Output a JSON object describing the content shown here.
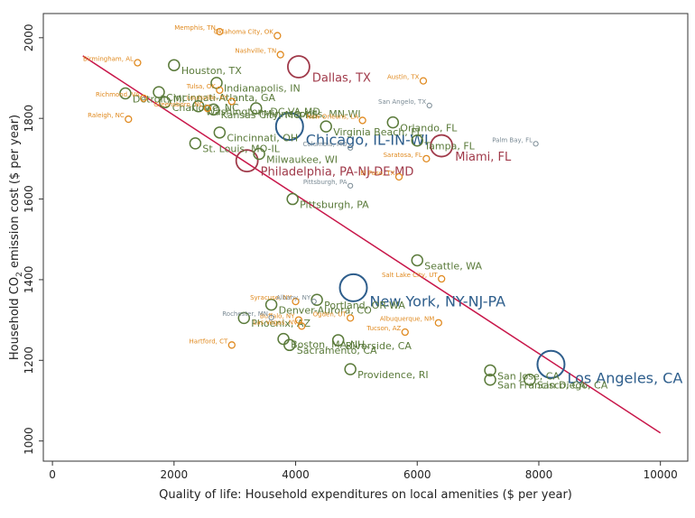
{
  "chart_data": {
    "type": "scatter",
    "xlabel": "Quality of life: Household expenditures on local amenities ($ per year)",
    "ylabel_main": "Household CO",
    "ylabel_sub": "2",
    "ylabel_rest": " emission cost ($ per year)",
    "xlim": [
      -150,
      10450
    ],
    "ylim": [
      950,
      2060
    ],
    "x_ticks": [
      0,
      2000,
      4000,
      6000,
      8000,
      10000
    ],
    "y_ticks": [
      1000,
      1200,
      1400,
      1600,
      1800,
      2000
    ],
    "fit_line": {
      "x": [
        500,
        10000
      ],
      "y": [
        1955,
        1020
      ]
    },
    "colors": {
      "large": "#2e5e8c",
      "medium": "#a03a4a",
      "small": "#5a7a3a",
      "tiny": "#e08a20",
      "tiny_gray": "#7a8a94",
      "line": "#c8174a"
    },
    "points": [
      {
        "label": "Los Angeles, CA",
        "x": 8200,
        "y": 1190,
        "size": "large"
      },
      {
        "label": "New York, NY-NJ-PA",
        "x": 4950,
        "y": 1380,
        "size": "large"
      },
      {
        "label": "Chicago, IL-IN-WI",
        "x": 3900,
        "y": 1780,
        "size": "large"
      },
      {
        "label": "Dallas, TX",
        "x": 4050,
        "y": 1928,
        "size": "medium"
      },
      {
        "label": "Miami, FL",
        "x": 6400,
        "y": 1732,
        "size": "medium"
      },
      {
        "label": "Philadelphia, PA-NJ-DE-MD",
        "x": 3200,
        "y": 1695,
        "size": "medium"
      },
      {
        "label": "Houston, TX",
        "x": 2000,
        "y": 1932,
        "size": "small"
      },
      {
        "label": "Indianapolis, IN",
        "x": 2700,
        "y": 1888,
        "size": "small"
      },
      {
        "label": "Cincinnati, OH",
        "x": 2750,
        "y": 1765,
        "size": "small"
      },
      {
        "label": "St. Louis, MO-IL",
        "x": 2350,
        "y": 1738,
        "size": "small"
      },
      {
        "label": "Milwaukee, WI",
        "x": 3400,
        "y": 1712,
        "size": "small"
      },
      {
        "label": "Pittsburgh, PA",
        "x": 3950,
        "y": 1600,
        "size": "small"
      },
      {
        "label": "Virginia Beach, FL",
        "x": 4500,
        "y": 1780,
        "size": "small"
      },
      {
        "label": "Orlando, FL",
        "x": 5600,
        "y": 1790,
        "size": "small"
      },
      {
        "label": "Tampa, FL",
        "x": 6000,
        "y": 1745,
        "size": "small"
      },
      {
        "label": "Seattle, WA",
        "x": 6000,
        "y": 1448,
        "size": "small"
      },
      {
        "label": "Portland, OR-WA",
        "x": 4350,
        "y": 1350,
        "size": "small"
      },
      {
        "label": "Denver-Aurora, CO",
        "x": 3600,
        "y": 1338,
        "size": "small"
      },
      {
        "label": "Phoenix, AZ",
        "x": 3150,
        "y": 1305,
        "size": "small"
      },
      {
        "label": "Boston, MA-NH",
        "x": 3800,
        "y": 1253,
        "size": "small"
      },
      {
        "label": "Sacramento, CA",
        "x": 3900,
        "y": 1238,
        "size": "small"
      },
      {
        "label": "Riverside, CA",
        "x": 4700,
        "y": 1250,
        "size": "small"
      },
      {
        "label": "Providence, RI",
        "x": 4900,
        "y": 1178,
        "size": "small"
      },
      {
        "label": "San Jose, CA",
        "x": 7200,
        "y": 1175,
        "size": "small"
      },
      {
        "label": "San Francisco, CA",
        "x": 7200,
        "y": 1152,
        "size": "small"
      },
      {
        "label": "San Diego, CA",
        "x": 7850,
        "y": 1152,
        "size": "small"
      },
      {
        "label": "Detroit, MI",
        "x": 1200,
        "y": 1862,
        "size": "small"
      },
      {
        "label": "Cincinnati-Atlanta, GA",
        "x": 1750,
        "y": 1865,
        "size": "small"
      },
      {
        "label": "Charlotte, NC",
        "x": 1850,
        "y": 1840,
        "size": "small"
      },
      {
        "label": "Washington, DC-VA-MD",
        "x": 2400,
        "y": 1830,
        "size": "small"
      },
      {
        "label": "Kansas City, MO-KS",
        "x": 2650,
        "y": 1822,
        "size": "small"
      },
      {
        "label": "Minneapolis, MN-WI",
        "x": 3350,
        "y": 1825,
        "size": "small"
      },
      {
        "label": "Memphis, TN",
        "x": 2750,
        "y": 2015,
        "size": "tiny"
      },
      {
        "label": "Oklahoma City, OK",
        "x": 3700,
        "y": 2005,
        "size": "tiny"
      },
      {
        "label": "Birmingham, AL",
        "x": 1400,
        "y": 1938,
        "size": "tiny"
      },
      {
        "label": "Nashville, TN",
        "x": 3750,
        "y": 1958,
        "size": "tiny"
      },
      {
        "label": "Austin, TX",
        "x": 6100,
        "y": 1893,
        "size": "tiny"
      },
      {
        "label": "Tulsa, OK",
        "x": 2750,
        "y": 1870,
        "size": "tiny"
      },
      {
        "label": "Richmond, VA",
        "x": 1500,
        "y": 1850,
        "size": "tiny"
      },
      {
        "label": "Raleigh, NC",
        "x": 1250,
        "y": 1798,
        "size": "tiny"
      },
      {
        "label": "Greensboro, NC",
        "x": 2550,
        "y": 1825,
        "size": "tiny"
      },
      {
        "label": "Louisville, KY",
        "x": 2950,
        "y": 1842,
        "size": "tiny"
      },
      {
        "label": "New Orleans, LA",
        "x": 5100,
        "y": 1795,
        "size": "tiny"
      },
      {
        "label": "Saratosa, FL",
        "x": 6150,
        "y": 1700,
        "size": "tiny"
      },
      {
        "label": "El Paso, TX",
        "x": 5700,
        "y": 1655,
        "size": "tiny"
      },
      {
        "label": "Salt Lake City, UT",
        "x": 6400,
        "y": 1402,
        "size": "tiny"
      },
      {
        "label": "Syracuse, NY",
        "x": 4000,
        "y": 1346,
        "size": "tiny"
      },
      {
        "label": "Albuquerque, NM",
        "x": 6350,
        "y": 1293,
        "size": "tiny"
      },
      {
        "label": "Buffalo, NY",
        "x": 4050,
        "y": 1300,
        "size": "tiny"
      },
      {
        "label": "Las Vegas, NV",
        "x": 4100,
        "y": 1285,
        "size": "tiny"
      },
      {
        "label": "Tucson, AZ",
        "x": 5800,
        "y": 1270,
        "size": "tiny"
      },
      {
        "label": "Ogden, UT",
        "x": 4900,
        "y": 1305,
        "size": "tiny"
      },
      {
        "label": "Hartford, CT",
        "x": 2950,
        "y": 1238,
        "size": "tiny"
      },
      {
        "label": "San Angelo, TX",
        "x": 6200,
        "y": 1832,
        "size": "tiny_gray"
      },
      {
        "label": "Palm Bay, FL",
        "x": 7950,
        "y": 1737,
        "size": "tiny_gray"
      },
      {
        "label": "Columbia, MO",
        "x": 4900,
        "y": 1727,
        "size": "tiny_gray"
      },
      {
        "label": "Pittsburgh, PA",
        "x": 4900,
        "y": 1633,
        "size": "tiny_gray"
      },
      {
        "label": "Rochester, MN",
        "x": 3600,
        "y": 1306,
        "size": "tiny_gray"
      },
      {
        "label": "Albany, NY",
        "x": 4300,
        "y": 1346,
        "size": "tiny_gray"
      }
    ]
  }
}
